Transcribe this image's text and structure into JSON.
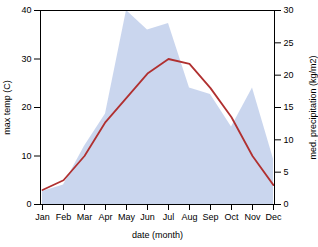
{
  "chart_data": {
    "type": "line",
    "xlabel": "date (month)",
    "ylabel": "max temp (C)",
    "y2label": "med. precipitation (kg/m2)",
    "categories": [
      "Jan",
      "Feb",
      "Mar",
      "Apr",
      "May",
      "Jun",
      "Jul",
      "Aug",
      "Sep",
      "Oct",
      "Nov",
      "Dec"
    ],
    "series": [
      {
        "type": "area",
        "axis": "y2",
        "color": "#b8c8e8",
        "values": [
          2,
          3,
          9,
          14,
          30,
          27,
          28,
          18,
          17,
          12,
          18,
          7
        ]
      },
      {
        "type": "line",
        "axis": "y",
        "color": "#b03030",
        "values": [
          3,
          5,
          10,
          17,
          22,
          27,
          30,
          29,
          24,
          18,
          10,
          4
        ]
      }
    ],
    "ylim": [
      0,
      40
    ],
    "yticks": [
      0,
      10,
      20,
      30,
      40
    ],
    "y2lim": [
      0,
      30
    ],
    "y2ticks": [
      0,
      5,
      10,
      15,
      20,
      25,
      30
    ],
    "grid": false
  }
}
